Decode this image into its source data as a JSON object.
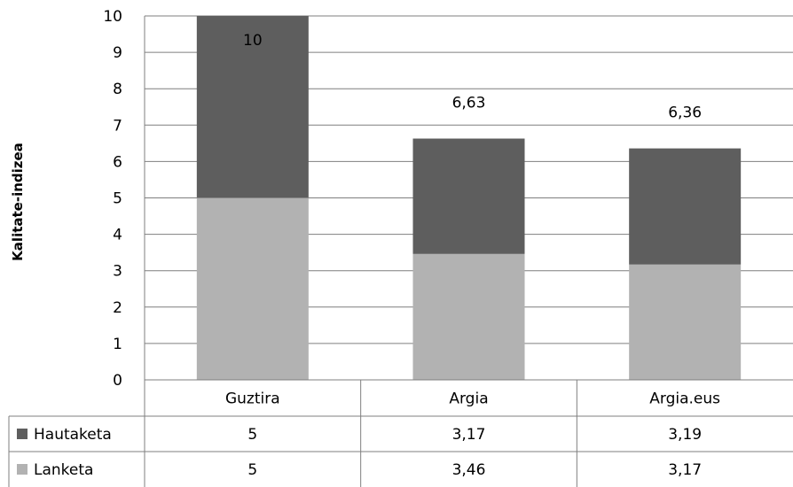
{
  "chart_data": {
    "type": "bar",
    "stacked": true,
    "title": "",
    "xlabel": "",
    "ylabel": "Kalitate-indizea",
    "ylim": [
      0,
      10
    ],
    "yticks": [
      "0",
      "1",
      "2",
      "3",
      "4",
      "5",
      "6",
      "7",
      "8",
      "9",
      "10"
    ],
    "grid": true,
    "categories": [
      "Guztira",
      "Argia",
      "Argia.eus"
    ],
    "series": [
      {
        "name": "Lanketa",
        "values": [
          5,
          3.46,
          3.17
        ],
        "labels": [
          "5",
          "3,46",
          "3,17"
        ],
        "color": "#b2b2b2"
      },
      {
        "name": "Hautaketa",
        "values": [
          5,
          3.17,
          3.19
        ],
        "labels": [
          "5",
          "3,17",
          "3,19"
        ],
        "color": "#5e5e5e"
      }
    ],
    "totals": [
      10,
      6.63,
      6.36
    ],
    "total_labels": [
      "10",
      "6,63",
      "6,36"
    ],
    "data_table": true
  }
}
